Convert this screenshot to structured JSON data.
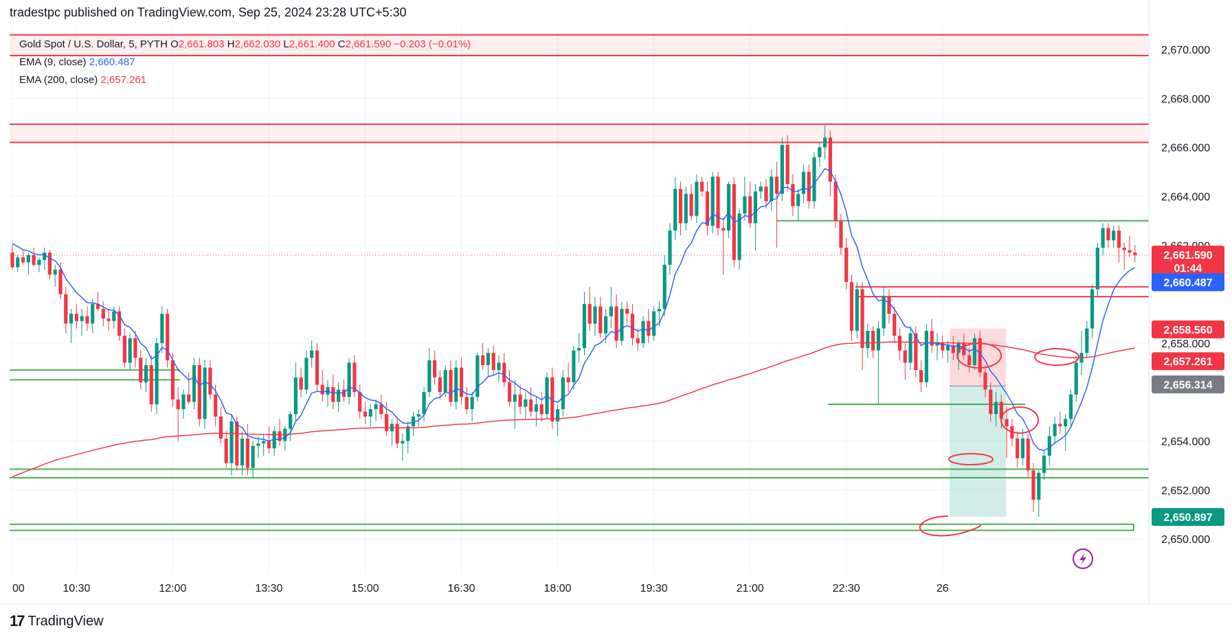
{
  "header": {
    "publisher": "tradestpc published on TradingView.com, Sep 25, 2024 23:28 UTC+5:30"
  },
  "legend": {
    "symbol": "Gold Spot / U.S. Dollar, 5, PYTH",
    "o_label": "O",
    "o_value": "2,661.803",
    "h_label": "H",
    "h_value": "2,662.030",
    "l_label": "L",
    "l_value": "2,661.400",
    "c_label": "C",
    "c_value": "2,661.590",
    "change": "−0.203 (−0.01%)",
    "ema9_label": "EMA (9, close)",
    "ema9_value": "2,660.487",
    "ema200_label": "EMA (200, close)",
    "ema200_value": "2,657.261"
  },
  "footer": {
    "logo": "TradingView"
  },
  "colors": {
    "up": "#089981",
    "down": "#f23645",
    "ema9": "#2962ff",
    "ema200": "#f23645",
    "support": "#4caf50",
    "resistance": "#f23645",
    "badge_gray": "#787b86"
  },
  "chart_data": {
    "type": "candlestick",
    "symbol": "Gold Spot / U.S. Dollar",
    "interval": "5",
    "ylim": [
      2648.6,
      2670.9
    ],
    "y_ticks": [
      "2,670.000",
      "2,668.000",
      "2,666.000",
      "2,664.000",
      "2,662.000",
      "2,658.000",
      "2,654.000",
      "2,652.000",
      "2,650.000"
    ],
    "y_tick_values": [
      2670,
      2668,
      2666,
      2664,
      2662,
      2658,
      2654,
      2652,
      2650
    ],
    "x_ticks": [
      "00",
      "10:30",
      "12:00",
      "13:30",
      "15:00",
      "16:30",
      "18:00",
      "19:30",
      "21:00",
      "22:30",
      "26"
    ],
    "price_badges": [
      {
        "label": "2,661.590",
        "sub": "01:44",
        "value": 2661.59,
        "color": "#f23645"
      },
      {
        "label": "2,660.487",
        "value": 2660.487,
        "color": "#2962ff"
      },
      {
        "label": "2,658.560",
        "value": 2658.56,
        "color": "#f23645"
      },
      {
        "label": "2,657.261",
        "value": 2657.261,
        "color": "#f23645"
      },
      {
        "label": "2,656.314",
        "value": 2656.314,
        "color": "#787b86"
      },
      {
        "label": "2,650.897",
        "value": 2650.897,
        "color": "#089981"
      }
    ],
    "candles_ohlc": [
      [
        2661.7,
        2662.0,
        2661.0,
        2661.1
      ],
      [
        2661.1,
        2661.6,
        2660.9,
        2661.5
      ],
      [
        2661.5,
        2661.8,
        2661.2,
        2661.3
      ],
      [
        2661.3,
        2661.7,
        2660.8,
        2661.6
      ],
      [
        2661.6,
        2661.9,
        2661.1,
        2661.2
      ],
      [
        2661.2,
        2661.5,
        2660.9,
        2661.4
      ],
      [
        2661.4,
        2661.9,
        2661.0,
        2661.7
      ],
      [
        2661.7,
        2661.8,
        2660.6,
        2660.8
      ],
      [
        2660.8,
        2661.2,
        2660.3,
        2661.0
      ],
      [
        2661.0,
        2661.3,
        2659.8,
        2660.0
      ],
      [
        2660.0,
        2660.3,
        2658.4,
        2658.8
      ],
      [
        2658.8,
        2659.4,
        2658.0,
        2659.2
      ],
      [
        2659.2,
        2659.6,
        2658.6,
        2658.9
      ],
      [
        2658.9,
        2659.4,
        2658.3,
        2659.1
      ],
      [
        2659.1,
        2659.5,
        2658.5,
        2658.8
      ],
      [
        2658.8,
        2659.8,
        2658.4,
        2659.6
      ],
      [
        2659.6,
        2660.1,
        2659.3,
        2659.4
      ],
      [
        2659.4,
        2659.7,
        2658.7,
        2659.0
      ],
      [
        2659.0,
        2659.4,
        2658.5,
        2658.9
      ],
      [
        2658.9,
        2659.5,
        2658.6,
        2659.3
      ],
      [
        2659.3,
        2659.5,
        2658.1,
        2658.3
      ],
      [
        2658.3,
        2658.6,
        2657.0,
        2657.2
      ],
      [
        2657.2,
        2658.4,
        2656.9,
        2658.2
      ],
      [
        2658.2,
        2658.5,
        2657.0,
        2657.4
      ],
      [
        2657.4,
        2657.7,
        2656.1,
        2656.4
      ],
      [
        2656.4,
        2657.4,
        2656.0,
        2657.1
      ],
      [
        2657.1,
        2657.5,
        2655.2,
        2655.5
      ],
      [
        2655.5,
        2658.2,
        2655.1,
        2658.0
      ],
      [
        2658.0,
        2659.5,
        2657.6,
        2659.2
      ],
      [
        2659.2,
        2659.4,
        2657.0,
        2657.3
      ],
      [
        2657.3,
        2657.6,
        2655.4,
        2655.7
      ],
      [
        2655.7,
        2656.2,
        2654.0,
        2655.3
      ],
      [
        2655.3,
        2656.1,
        2654.9,
        2655.9
      ],
      [
        2655.9,
        2656.8,
        2655.5,
        2655.6
      ],
      [
        2655.6,
        2657.4,
        2655.3,
        2657.1
      ],
      [
        2657.1,
        2657.4,
        2654.6,
        2654.9
      ],
      [
        2654.9,
        2657.3,
        2654.5,
        2657.0
      ],
      [
        2657.0,
        2657.3,
        2655.7,
        2655.9
      ],
      [
        2655.9,
        2656.3,
        2654.6,
        2655.0
      ],
      [
        2655.0,
        2655.4,
        2653.9,
        2654.1
      ],
      [
        2654.1,
        2654.4,
        2652.9,
        2653.1
      ],
      [
        2653.1,
        2655.1,
        2652.6,
        2654.8
      ],
      [
        2654.8,
        2655.0,
        2652.8,
        2653.0
      ],
      [
        2653.0,
        2654.4,
        2652.6,
        2654.1
      ],
      [
        2654.1,
        2654.7,
        2652.6,
        2652.9
      ],
      [
        2652.9,
        2654.0,
        2652.5,
        2653.8
      ],
      [
        2653.8,
        2654.2,
        2653.3,
        2653.9
      ],
      [
        2653.9,
        2654.3,
        2653.4,
        2654.0
      ],
      [
        2654.0,
        2654.6,
        2653.5,
        2653.7
      ],
      [
        2653.7,
        2654.6,
        2653.4,
        2654.4
      ],
      [
        2654.4,
        2654.9,
        2653.8,
        2654.0
      ],
      [
        2654.0,
        2654.6,
        2653.6,
        2654.5
      ],
      [
        2654.5,
        2655.2,
        2654.0,
        2655.1
      ],
      [
        2655.1,
        2657.2,
        2654.8,
        2656.6
      ],
      [
        2656.6,
        2657.0,
        2655.8,
        2656.1
      ],
      [
        2656.1,
        2657.7,
        2655.9,
        2657.4
      ],
      [
        2657.4,
        2658.1,
        2657.0,
        2657.7
      ],
      [
        2657.7,
        2658.0,
        2656.0,
        2656.3
      ],
      [
        2656.3,
        2656.9,
        2655.6,
        2655.9
      ],
      [
        2655.9,
        2656.5,
        2655.4,
        2656.2
      ],
      [
        2656.2,
        2656.7,
        2655.3,
        2655.6
      ],
      [
        2655.6,
        2656.4,
        2655.2,
        2656.1
      ],
      [
        2656.1,
        2656.5,
        2655.6,
        2655.8
      ],
      [
        2655.8,
        2657.4,
        2655.5,
        2657.2
      ],
      [
        2657.2,
        2657.5,
        2655.8,
        2656.0
      ],
      [
        2656.0,
        2656.3,
        2654.9,
        2655.2
      ],
      [
        2655.2,
        2655.6,
        2654.7,
        2655.0
      ],
      [
        2655.0,
        2655.5,
        2654.6,
        2655.3
      ],
      [
        2655.3,
        2655.7,
        2654.8,
        2655.5
      ],
      [
        2655.5,
        2655.9,
        2654.9,
        2655.1
      ],
      [
        2655.1,
        2655.6,
        2654.2,
        2654.4
      ],
      [
        2654.4,
        2654.9,
        2653.8,
        2654.7
      ],
      [
        2654.7,
        2655.0,
        2653.7,
        2653.9
      ],
      [
        2653.9,
        2654.3,
        2653.2,
        2654.0
      ],
      [
        2654.0,
        2654.8,
        2653.5,
        2654.6
      ],
      [
        2654.6,
        2655.2,
        2654.2,
        2655.0
      ],
      [
        2655.0,
        2655.3,
        2654.6,
        2655.1
      ],
      [
        2655.1,
        2656.2,
        2654.8,
        2656.0
      ],
      [
        2656.0,
        2657.8,
        2655.8,
        2657.3
      ],
      [
        2657.3,
        2657.7,
        2656.3,
        2656.6
      ],
      [
        2656.6,
        2656.9,
        2655.7,
        2656.0
      ],
      [
        2656.0,
        2657.1,
        2655.8,
        2656.9
      ],
      [
        2656.9,
        2657.3,
        2655.4,
        2655.6
      ],
      [
        2655.6,
        2657.3,
        2655.3,
        2657.0
      ],
      [
        2657.0,
        2657.4,
        2655.5,
        2655.8
      ],
      [
        2655.8,
        2656.2,
        2655.1,
        2655.3
      ],
      [
        2655.3,
        2656.0,
        2654.8,
        2655.8
      ],
      [
        2655.8,
        2657.6,
        2655.6,
        2657.5
      ],
      [
        2657.5,
        2658.0,
        2656.9,
        2657.1
      ],
      [
        2657.1,
        2657.8,
        2656.6,
        2657.6
      ],
      [
        2657.6,
        2657.9,
        2656.7,
        2656.9
      ],
      [
        2656.9,
        2657.5,
        2656.4,
        2657.2
      ],
      [
        2657.2,
        2657.6,
        2656.2,
        2656.4
      ],
      [
        2656.4,
        2656.9,
        2655.4,
        2655.6
      ],
      [
        2655.6,
        2656.5,
        2654.5,
        2655.9
      ],
      [
        2655.9,
        2656.3,
        2655.1,
        2655.4
      ],
      [
        2655.4,
        2656.0,
        2654.9,
        2655.7
      ],
      [
        2655.7,
        2656.2,
        2655.0,
        2655.2
      ],
      [
        2655.2,
        2655.8,
        2654.6,
        2655.5
      ],
      [
        2655.5,
        2656.0,
        2654.8,
        2655.1
      ],
      [
        2655.1,
        2656.8,
        2654.9,
        2656.6
      ],
      [
        2656.6,
        2657.0,
        2654.5,
        2654.8
      ],
      [
        2654.8,
        2655.5,
        2654.2,
        2655.3
      ],
      [
        2655.3,
        2656.9,
        2655.0,
        2656.6
      ],
      [
        2656.6,
        2657.2,
        2656.0,
        2656.4
      ],
      [
        2656.4,
        2657.9,
        2656.1,
        2657.7
      ],
      [
        2657.7,
        2658.4,
        2657.2,
        2657.8
      ],
      [
        2657.8,
        2660.1,
        2657.5,
        2659.6
      ],
      [
        2659.6,
        2660.3,
        2658.5,
        2658.8
      ],
      [
        2658.8,
        2659.9,
        2658.3,
        2659.5
      ],
      [
        2659.5,
        2659.9,
        2658.2,
        2658.4
      ],
      [
        2658.4,
        2659.4,
        2658.0,
        2659.1
      ],
      [
        2659.1,
        2660.3,
        2658.6,
        2659.5
      ],
      [
        2659.5,
        2660.0,
        2657.8,
        2658.1
      ],
      [
        2658.1,
        2659.7,
        2657.9,
        2659.4
      ],
      [
        2659.4,
        2659.7,
        2658.8,
        2659.2
      ],
      [
        2659.2,
        2659.6,
        2657.9,
        2658.2
      ],
      [
        2658.2,
        2658.6,
        2657.7,
        2658.0
      ],
      [
        2658.0,
        2659.1,
        2657.8,
        2658.9
      ],
      [
        2658.9,
        2659.4,
        2658.0,
        2658.3
      ],
      [
        2658.3,
        2659.5,
        2658.1,
        2659.3
      ],
      [
        2659.3,
        2659.7,
        2658.7,
        2659.4
      ],
      [
        2659.4,
        2661.6,
        2659.1,
        2661.2
      ],
      [
        2661.2,
        2662.9,
        2660.8,
        2662.6
      ],
      [
        2662.6,
        2664.8,
        2662.2,
        2664.3
      ],
      [
        2664.3,
        2664.6,
        2662.4,
        2662.9
      ],
      [
        2662.9,
        2664.4,
        2662.6,
        2664.1
      ],
      [
        2664.1,
        2664.5,
        2663.0,
        2663.2
      ],
      [
        2663.2,
        2664.9,
        2662.9,
        2664.6
      ],
      [
        2664.6,
        2664.8,
        2664.0,
        2664.2
      ],
      [
        2664.2,
        2664.6,
        2662.4,
        2662.8
      ],
      [
        2662.8,
        2665.0,
        2662.5,
        2664.8
      ],
      [
        2664.8,
        2665.0,
        2662.4,
        2662.7
      ],
      [
        2662.7,
        2663.1,
        2660.8,
        2662.6
      ],
      [
        2662.6,
        2664.6,
        2662.3,
        2664.5
      ],
      [
        2664.5,
        2664.8,
        2661.1,
        2661.4
      ],
      [
        2661.4,
        2663.5,
        2661.0,
        2663.3
      ],
      [
        2663.3,
        2664.8,
        2663.0,
        2664.0
      ],
      [
        2664.0,
        2664.6,
        2662.7,
        2662.9
      ],
      [
        2662.9,
        2664.5,
        2661.8,
        2664.2
      ],
      [
        2664.2,
        2664.6,
        2663.9,
        2664.4
      ],
      [
        2664.4,
        2664.7,
        2663.5,
        2663.8
      ],
      [
        2663.8,
        2665.1,
        2663.4,
        2664.8
      ],
      [
        2664.8,
        2665.4,
        2661.9,
        2664.1
      ],
      [
        2664.1,
        2666.4,
        2663.8,
        2666.1
      ],
      [
        2666.1,
        2666.5,
        2664.2,
        2664.5
      ],
      [
        2664.5,
        2664.9,
        2663.2,
        2663.6
      ],
      [
        2663.6,
        2664.3,
        2663.0,
        2664.1
      ],
      [
        2664.1,
        2665.3,
        2663.7,
        2665.0
      ],
      [
        2665.0,
        2665.3,
        2663.5,
        2663.8
      ],
      [
        2663.8,
        2665.8,
        2663.5,
        2665.6
      ],
      [
        2665.6,
        2666.2,
        2665.2,
        2666.0
      ],
      [
        2666.0,
        2666.9,
        2665.5,
        2666.4
      ],
      [
        2666.4,
        2666.7,
        2664.0,
        2664.6
      ],
      [
        2664.6,
        2664.9,
        2662.7,
        2663.0
      ],
      [
        2663.0,
        2663.3,
        2661.6,
        2661.9
      ],
      [
        2661.9,
        2662.3,
        2660.2,
        2660.5
      ],
      [
        2660.5,
        2660.8,
        2658.1,
        2658.5
      ],
      [
        2658.5,
        2660.5,
        2658.2,
        2660.2
      ],
      [
        2660.2,
        2660.5,
        2656.9,
        2657.8
      ],
      [
        2657.8,
        2658.8,
        2657.4,
        2658.5
      ],
      [
        2658.5,
        2658.7,
        2657.4,
        2657.7
      ],
      [
        2657.7,
        2658.9,
        2655.5,
        2658.6
      ],
      [
        2658.6,
        2660.3,
        2658.3,
        2659.9
      ],
      [
        2659.9,
        2660.2,
        2658.8,
        2659.2
      ],
      [
        2659.2,
        2659.5,
        2658.0,
        2658.3
      ],
      [
        2658.3,
        2658.6,
        2657.3,
        2657.7
      ],
      [
        2657.7,
        2658.0,
        2656.5,
        2657.2
      ],
      [
        2657.2,
        2658.7,
        2656.9,
        2658.4
      ],
      [
        2658.4,
        2658.7,
        2656.6,
        2656.9
      ],
      [
        2656.9,
        2657.3,
        2656.0,
        2656.4
      ],
      [
        2656.4,
        2658.8,
        2656.2,
        2658.5
      ],
      [
        2658.5,
        2659.0,
        2657.6,
        2657.9
      ],
      [
        2657.9,
        2658.4,
        2657.3,
        2658.0
      ],
      [
        2658.0,
        2658.3,
        2657.4,
        2657.7
      ],
      [
        2657.7,
        2658.1,
        2657.2,
        2657.9
      ],
      [
        2657.9,
        2658.3,
        2657.3,
        2657.6
      ],
      [
        2657.6,
        2658.1,
        2656.9,
        2658.0
      ],
      [
        2658.0,
        2658.4,
        2657.3,
        2657.5
      ],
      [
        2657.5,
        2657.8,
        2656.8,
        2657.1
      ],
      [
        2657.1,
        2658.4,
        2656.9,
        2658.2
      ],
      [
        2658.2,
        2658.5,
        2656.6,
        2656.8
      ],
      [
        2656.8,
        2657.1,
        2655.8,
        2656.1
      ],
      [
        2656.1,
        2656.4,
        2654.8,
        2655.1
      ],
      [
        2655.1,
        2656.0,
        2654.6,
        2655.6
      ],
      [
        2655.6,
        2655.9,
        2654.5,
        2654.9
      ],
      [
        2654.9,
        2655.4,
        2653.3,
        2654.6
      ],
      [
        2654.6,
        2654.9,
        2653.8,
        2654.1
      ],
      [
        2654.1,
        2654.4,
        2652.9,
        2653.3
      ],
      [
        2653.3,
        2654.5,
        2653.0,
        2654.1
      ],
      [
        2654.1,
        2654.3,
        2652.5,
        2652.8
      ],
      [
        2652.8,
        2653.1,
        2651.1,
        2651.6
      ],
      [
        2651.6,
        2652.8,
        2650.9,
        2652.7
      ],
      [
        2652.7,
        2653.6,
        2652.4,
        2653.4
      ],
      [
        2653.4,
        2654.6,
        2653.0,
        2654.2
      ],
      [
        2654.2,
        2655.0,
        2653.9,
        2654.7
      ],
      [
        2654.7,
        2655.2,
        2654.3,
        2654.6
      ],
      [
        2654.6,
        2655.1,
        2653.6,
        2654.9
      ],
      [
        2654.9,
        2656.1,
        2654.6,
        2655.9
      ],
      [
        2655.9,
        2657.5,
        2655.6,
        2657.2
      ],
      [
        2657.2,
        2658.5,
        2656.7,
        2657.6
      ],
      [
        2657.6,
        2658.9,
        2657.4,
        2658.6
      ],
      [
        2658.6,
        2660.4,
        2658.2,
        2660.2
      ],
      [
        2660.2,
        2662.1,
        2659.9,
        2661.9
      ],
      [
        2661.9,
        2662.9,
        2661.6,
        2662.7
      ],
      [
        2662.7,
        2662.9,
        2661.9,
        2662.2
      ],
      [
        2662.2,
        2662.8,
        2661.9,
        2662.6
      ],
      [
        2662.6,
        2662.8,
        2661.3,
        2661.9
      ],
      [
        2661.9,
        2662.1,
        2661.0,
        2661.8
      ],
      [
        2661.8,
        2662.4,
        2661.5,
        2661.7
      ],
      [
        2661.7,
        2662.0,
        2661.3,
        2661.6
      ]
    ],
    "levels": {
      "resistance_zones": [
        [
          2670.6,
          2669.75
        ],
        [
          2666.95,
          2666.2
        ]
      ],
      "green_lines": [
        2663.0,
        2656.9,
        2656.5,
        2655.5,
        2652.85,
        2652.5,
        2650.6,
        2650.35
      ],
      "red_lines": [
        2660.3,
        2659.9
      ]
    },
    "long_position": {
      "entry": 2656.25,
      "target": 2658.6,
      "stop": 2650.9
    }
  }
}
